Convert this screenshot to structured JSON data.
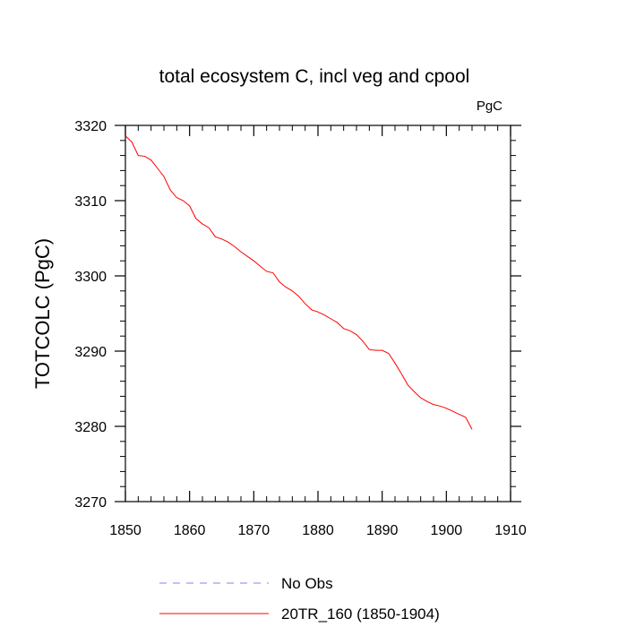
{
  "chart_data": {
    "type": "line",
    "title": "total ecosystem C, incl veg and cpool",
    "units_label": "PgC",
    "xlabel": "",
    "ylabel": "TOTCOLC  (PgC)",
    "xlim": [
      1850,
      1910
    ],
    "ylim": [
      3270,
      3320
    ],
    "xticks": [
      1850,
      1860,
      1870,
      1880,
      1890,
      1900,
      1910
    ],
    "yticks": [
      3270,
      3280,
      3290,
      3300,
      3310,
      3320
    ],
    "x_minor_step": 2,
    "y_minor_step": 2,
    "legend_position": "bottom",
    "series": [
      {
        "name": "No Obs",
        "color": "#8080ff",
        "dash": "dashed",
        "x": [],
        "values": []
      },
      {
        "name": "20TR_160 (1850-1904)",
        "color": "#ff0000",
        "dash": "solid",
        "x": [
          1850,
          1851,
          1852,
          1853,
          1854,
          1855,
          1856,
          1857,
          1858,
          1859,
          1860,
          1861,
          1862,
          1863,
          1864,
          1865,
          1866,
          1867,
          1868,
          1869,
          1870,
          1871,
          1872,
          1873,
          1874,
          1875,
          1876,
          1877,
          1878,
          1879,
          1880,
          1881,
          1882,
          1883,
          1884,
          1885,
          1886,
          1887,
          1888,
          1889,
          1890,
          1891,
          1892,
          1893,
          1894,
          1895,
          1896,
          1897,
          1898,
          1899,
          1900,
          1901,
          1902,
          1903,
          1904
        ],
        "values": [
          3318.6,
          3317.8,
          3316.0,
          3315.9,
          3315.4,
          3314.3,
          3313.2,
          3311.4,
          3310.4,
          3310.0,
          3309.3,
          3307.6,
          3306.9,
          3306.4,
          3305.2,
          3304.9,
          3304.5,
          3303.9,
          3303.2,
          3302.6,
          3302.0,
          3301.3,
          3300.6,
          3300.4,
          3299.2,
          3298.5,
          3298.0,
          3297.3,
          3296.3,
          3295.5,
          3295.2,
          3294.8,
          3294.3,
          3293.8,
          3293.0,
          3292.7,
          3292.2,
          3291.3,
          3290.2,
          3290.1,
          3290.1,
          3289.7,
          3288.4,
          3287.0,
          3285.5,
          3284.6,
          3283.8,
          3283.3,
          3282.9,
          3282.7,
          3282.4,
          3282.0,
          3281.6,
          3281.2,
          3279.6
        ]
      }
    ]
  }
}
